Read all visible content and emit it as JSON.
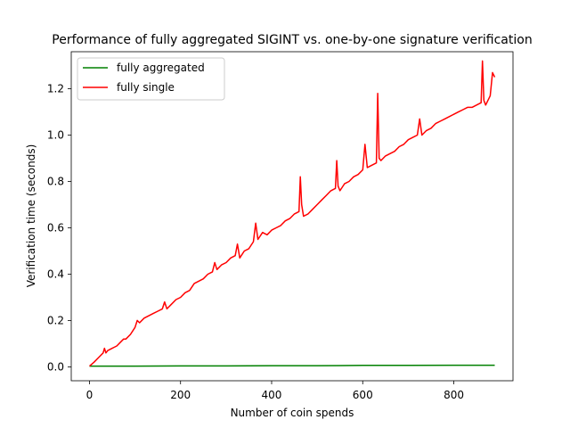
{
  "chart_data": {
    "type": "line",
    "title": "Performance of fully aggregated SIGINT vs. one-by-one signature verification",
    "xlabel": "Number of coin spends",
    "ylabel": "Verification time (seconds)",
    "xlim": [
      -40,
      930
    ],
    "ylim": [
      -0.06,
      1.36
    ],
    "xticks": [
      0,
      200,
      400,
      600,
      800
    ],
    "xtick_labels": [
      "0",
      "200",
      "400",
      "600",
      "800"
    ],
    "yticks": [
      0.0,
      0.2,
      0.4,
      0.6,
      0.8,
      1.0,
      1.2
    ],
    "ytick_labels": [
      "0.0",
      "0.2",
      "0.4",
      "0.6",
      "0.8",
      "1.0",
      "1.2"
    ],
    "grid": false,
    "legend_position": "top-left",
    "series": [
      {
        "name": "fully aggregated",
        "color": "#008000",
        "x": [
          0,
          100,
          200,
          300,
          400,
          500,
          600,
          700,
          800,
          890
        ],
        "y": [
          0.003,
          0.003,
          0.004,
          0.004,
          0.005,
          0.005,
          0.006,
          0.006,
          0.007,
          0.007
        ]
      },
      {
        "name": "fully single",
        "color": "#ff0000",
        "x": [
          0,
          10,
          20,
          30,
          33,
          36,
          40,
          50,
          60,
          70,
          75,
          80,
          90,
          100,
          105,
          110,
          120,
          130,
          140,
          150,
          160,
          165,
          170,
          180,
          190,
          200,
          210,
          220,
          230,
          240,
          250,
          260,
          270,
          275,
          280,
          290,
          300,
          310,
          320,
          325,
          330,
          340,
          350,
          360,
          365,
          370,
          380,
          390,
          400,
          410,
          420,
          430,
          440,
          450,
          460,
          463,
          466,
          470,
          480,
          490,
          500,
          510,
          520,
          530,
          540,
          543,
          546,
          550,
          560,
          570,
          580,
          590,
          600,
          605,
          610,
          620,
          630,
          633,
          636,
          640,
          650,
          660,
          670,
          680,
          690,
          700,
          710,
          720,
          725,
          730,
          740,
          750,
          760,
          770,
          780,
          790,
          800,
          810,
          820,
          830,
          840,
          850,
          860,
          863,
          866,
          870,
          880,
          885,
          890
        ],
        "y": [
          0.003,
          0.02,
          0.04,
          0.06,
          0.08,
          0.06,
          0.07,
          0.08,
          0.09,
          0.11,
          0.12,
          0.12,
          0.14,
          0.17,
          0.2,
          0.19,
          0.21,
          0.22,
          0.23,
          0.24,
          0.25,
          0.28,
          0.25,
          0.27,
          0.29,
          0.3,
          0.32,
          0.33,
          0.36,
          0.37,
          0.38,
          0.4,
          0.41,
          0.45,
          0.42,
          0.44,
          0.45,
          0.47,
          0.48,
          0.53,
          0.47,
          0.5,
          0.51,
          0.54,
          0.62,
          0.55,
          0.58,
          0.57,
          0.59,
          0.6,
          0.61,
          0.63,
          0.64,
          0.66,
          0.67,
          0.82,
          0.7,
          0.65,
          0.66,
          0.68,
          0.7,
          0.72,
          0.74,
          0.76,
          0.77,
          0.89,
          0.78,
          0.76,
          0.79,
          0.8,
          0.82,
          0.83,
          0.85,
          0.96,
          0.86,
          0.87,
          0.88,
          1.18,
          0.9,
          0.89,
          0.91,
          0.92,
          0.93,
          0.95,
          0.96,
          0.98,
          0.99,
          1.0,
          1.07,
          1.0,
          1.02,
          1.03,
          1.05,
          1.06,
          1.07,
          1.08,
          1.09,
          1.1,
          1.11,
          1.12,
          1.12,
          1.13,
          1.14,
          1.32,
          1.15,
          1.13,
          1.17,
          1.27,
          1.25
        ]
      }
    ]
  }
}
